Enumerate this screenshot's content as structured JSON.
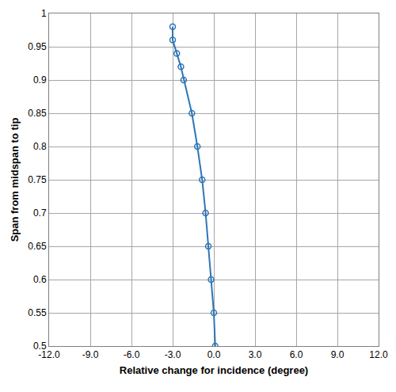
{
  "chart_data": {
    "type": "line",
    "x_label": "Relative change for incidence (degree)",
    "y_label": "Span from midspan to tip",
    "x": [
      0.1,
      0.0,
      -0.2,
      -0.4,
      -0.6,
      -0.85,
      -1.2,
      -1.6,
      -2.2,
      -2.4,
      -2.7,
      -3.0,
      -3.0
    ],
    "values": [
      0.5,
      0.55,
      0.6,
      0.65,
      0.7,
      0.75,
      0.8,
      0.85,
      0.9,
      0.92,
      0.94,
      0.96,
      0.98
    ],
    "color": "#2e75b6",
    "marker": "open circle",
    "line_style": "solid",
    "xlim": [
      -12,
      12
    ],
    "xticks": [
      {
        "value": -12,
        "label": "-12.0"
      },
      {
        "value": -9,
        "label": "-9.0"
      },
      {
        "value": -6,
        "label": "-6.0"
      },
      {
        "value": -3,
        "label": "-3.0"
      },
      {
        "value": 0,
        "label": "0.0"
      },
      {
        "value": 3,
        "label": "3.0"
      },
      {
        "value": 6,
        "label": "6.0"
      },
      {
        "value": 9,
        "label": "9.0"
      },
      {
        "value": 12,
        "label": "12.0"
      }
    ],
    "ylim": [
      0.5,
      1
    ],
    "yticks": [
      0.5,
      0.55,
      0.6,
      0.65,
      0.7,
      0.75,
      0.8,
      0.85,
      0.9,
      0.95,
      1
    ],
    "grid": true
  }
}
